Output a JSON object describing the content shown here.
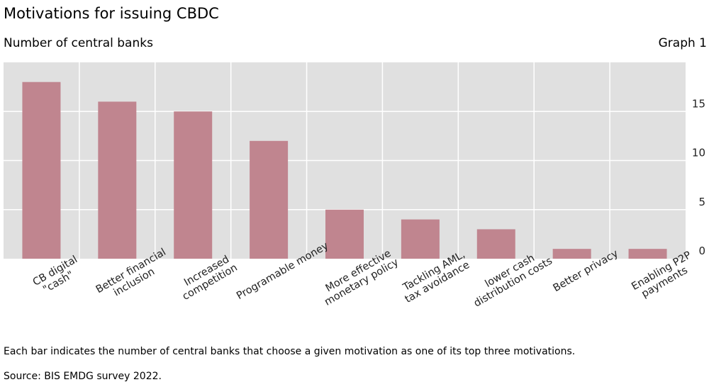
{
  "header": {
    "title": "Motivations for issuing CBDC",
    "subtitle": "Number of central banks",
    "graph_label": "Graph 1"
  },
  "footer": {
    "note": "Each bar indicates the number of central banks that choose a given motivation as one of its top three motivations.",
    "source": "Source: BIS EMDG survey 2022."
  },
  "chart_data": {
    "type": "bar",
    "title": "Motivations for issuing CBDC",
    "ylabel": "Number of central banks",
    "categories": [
      [
        "CB digital",
        "\"cash\""
      ],
      [
        "Better financial",
        "inclusion"
      ],
      [
        "Increased",
        "competition"
      ],
      [
        "Programable money"
      ],
      [
        "More effective",
        "monetary policy"
      ],
      [
        "Tackling AML,",
        "tax avoidance"
      ],
      [
        "lower cash",
        "distribution costs"
      ],
      [
        "Better privacy"
      ],
      [
        "Enabling P2P",
        "payments"
      ]
    ],
    "values": [
      18,
      16,
      15,
      12,
      5,
      4,
      3,
      1,
      1
    ],
    "ylim": [
      0,
      20
    ],
    "yticks": [
      0,
      5,
      10,
      15
    ],
    "y_axis_side": "right",
    "grid": true,
    "colors": {
      "bar": "#c0858f",
      "plot_bg": "#e0e0e0",
      "grid": "#ffffff"
    }
  }
}
